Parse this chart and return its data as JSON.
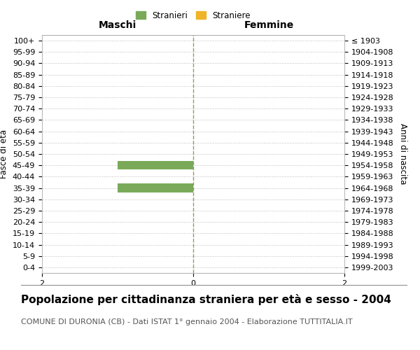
{
  "age_groups": [
    "100+",
    "95-99",
    "90-94",
    "85-89",
    "80-84",
    "75-79",
    "70-74",
    "65-69",
    "60-64",
    "55-59",
    "50-54",
    "45-49",
    "40-44",
    "35-39",
    "30-34",
    "25-29",
    "20-24",
    "15-19",
    "10-14",
    "5-9",
    "0-4"
  ],
  "birth_years": [
    "≤ 1903",
    "1904-1908",
    "1909-1913",
    "1914-1918",
    "1919-1923",
    "1924-1928",
    "1929-1933",
    "1934-1938",
    "1939-1943",
    "1944-1948",
    "1949-1953",
    "1954-1958",
    "1959-1963",
    "1964-1968",
    "1969-1973",
    "1974-1978",
    "1979-1983",
    "1984-1988",
    "1989-1993",
    "1994-1998",
    "1999-2003"
  ],
  "males": [
    0,
    0,
    0,
    0,
    0,
    0,
    0,
    0,
    0,
    0,
    0,
    1,
    0,
    1,
    0,
    0,
    0,
    0,
    0,
    0,
    0
  ],
  "females": [
    0,
    0,
    0,
    0,
    0,
    0,
    0,
    0,
    0,
    0,
    0,
    0,
    0,
    0,
    0,
    0,
    0,
    0,
    0,
    0,
    0
  ],
  "male_color": "#7aaa59",
  "female_color": "#f0b429",
  "bar_height": 0.75,
  "xlim": [
    -2,
    2
  ],
  "xticks": [
    -2,
    0,
    2
  ],
  "xticklabels": [
    "2",
    "0",
    "2"
  ],
  "title": "Popolazione per cittadinanza straniera per età e sesso - 2004",
  "subtitle": "COMUNE DI DURONIA (CB) - Dati ISTAT 1° gennaio 2004 - Elaborazione TUTTITALIA.IT",
  "ylabel_left": "Fasce di età",
  "ylabel_right": "Anni di nascita",
  "header_left": "Maschi",
  "header_right": "Femmine",
  "legend_stranieri": "Stranieri",
  "legend_straniere": "Straniere",
  "bg_color": "#ffffff",
  "grid_color": "#cccccc",
  "center_line_color": "#999966",
  "title_fontsize": 11,
  "subtitle_fontsize": 8,
  "label_fontsize": 8.5,
  "tick_fontsize": 8,
  "header_fontsize": 10
}
